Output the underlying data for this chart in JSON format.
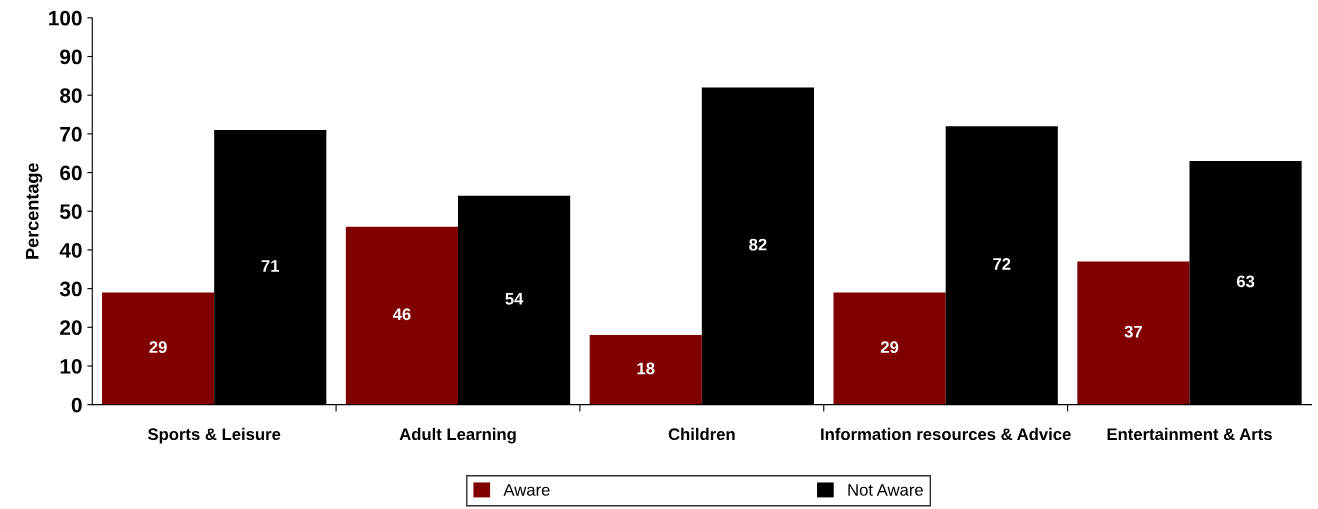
{
  "chart_data": {
    "type": "bar",
    "ylabel": "Percentage",
    "categories": [
      "Sports & Leisure",
      "Adult Learning",
      "Children",
      "Information resources & Advice",
      "Entertainment & Arts"
    ],
    "series": [
      {
        "name": "Aware",
        "color": "#800000",
        "values": [
          29,
          46,
          18,
          29,
          37
        ]
      },
      {
        "name": "Not Aware",
        "color": "#000000",
        "values": [
          71,
          54,
          82,
          72,
          63
        ]
      }
    ],
    "ylim": [
      0,
      100
    ],
    "yticks": [
      0,
      10,
      20,
      30,
      40,
      50,
      60,
      70,
      80,
      90,
      100
    ],
    "data_labels": true,
    "grid": false,
    "legend": "bottom"
  }
}
